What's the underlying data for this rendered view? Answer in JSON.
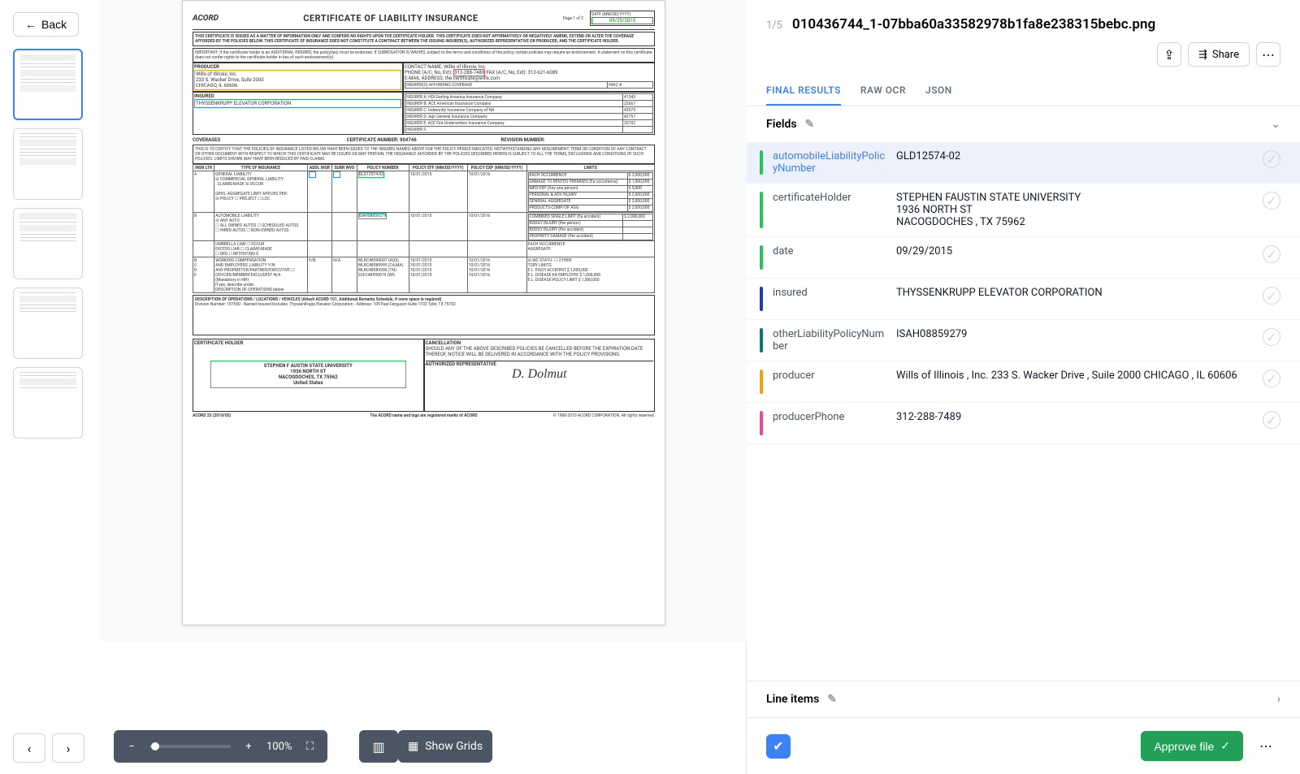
{
  "back_label": "Back",
  "page_counter": "1/5",
  "file_title": "010436744_1-07bba60a33582978b1fa8e238315bebc.png",
  "share_label": "Share",
  "tabs": {
    "final": "FINAL RESULTS",
    "raw": "RAW OCR",
    "json": "JSON"
  },
  "sections": {
    "fields": "Fields",
    "line_items": "Line items"
  },
  "zoom_label": "100%",
  "show_grids_label": "Show Grids",
  "approve_label": "Approve file",
  "colors": {
    "automobileLiabilityPolicyNumber": "#22c55e",
    "certificateHolder": "#22c55e",
    "date": "#22c55e",
    "insured": "#1e40af",
    "otherLiabilityPolicyNumber": "#0f766e",
    "producer": "#f59e0b",
    "producerPhone": "#ec4899"
  },
  "fields": [
    {
      "key": "automobileLiabilityPolicyNumber",
      "value": "GLD12574-02",
      "selected": true
    },
    {
      "key": "certificateHolder",
      "value": "STEPHEN FAUSTIN STATE UNIVERSITY\n1936 NORTH ST\nNACOGDOCHES , TX 75962"
    },
    {
      "key": "date",
      "value": "09/29/2015"
    },
    {
      "key": "insured",
      "value": "THYSSENKRUPP ELEVATOR CORPORATION"
    },
    {
      "key": "otherLiabilityPolicyNumber",
      "value": "ISAH08859279"
    },
    {
      "key": "producer",
      "value": "Wills of Illinois , Inc. 233 S. Wacker Drive , Suile 2000 CHICAGO , IL 60606"
    },
    {
      "key": "producerPhone",
      "value": "312-288-7489"
    }
  ],
  "doc": {
    "logo": "ACORD",
    "title": "CERTIFICATE OF LIABILITY INSURANCE",
    "page": "Page 1 of 2",
    "date_label": "DATE (MM/DD/YYYY)",
    "date_value": "09/29/2015",
    "disclaimer": "THIS CERTIFICATE IS ISSUED AS A MATTER OF INFORMATION ONLY AND CONFERS NO RIGHTS UPON THE CERTIFICATE HOLDER. THIS CERTIFICATE DOES NOT AFFIRMATIVELY OR NEGATIVELY AMEND, EXTEND OR ALTER THE COVERAGE AFFORDED BY THE POLICIES BELOW. THIS CERTIFICATE OF INSURANCE DOES NOT CONSTITUTE A CONTRACT BETWEEN THE ISSUING INSURER(S), AUTHORIZED REPRESENTATIVE OR PRODUCER, AND THE CERTIFICATE HOLDER.",
    "important": "IMPORTANT: If the certificate holder is an ADDITIONAL INSURED, the policy(ies) must be endorsed. If SUBROGATION IS WAIVED, subject to the terms and conditions of the policy, certain policies may require an endorsement. A statement on this certificate does not confer rights to the certificate holder in lieu of such endorsement(s).",
    "producer_label": "PRODUCER",
    "producer_lines": "Wills of Illinois, Inc.\n233 S. Wacker Drive, Suile 2000\nCHICAGO, IL 60606",
    "contact_label": "CONTACT NAME:",
    "contact_value": "Willis of Illinois, Inc.",
    "phone_label": "PHONE (A/C, No, Ext):",
    "phone_value": "312-288-7489",
    "fax_label": "FAX (A/C, No, Ext):",
    "fax_value": "312-621-6089",
    "email_label": "E-MAIL ADDRESS:",
    "email_value": "the.certificate@wills.com",
    "insurers_label": "INSURER(S) AFFORDING COVERAGE",
    "naic_label": "NAIC #",
    "insurers": [
      {
        "l": "INSURER A:",
        "n": "HDI-Gerling America Insurance Company",
        "c": "41343"
      },
      {
        "l": "INSURER B:",
        "n": "ACE American Insurance Company",
        "c": "22667"
      },
      {
        "l": "INSURER C:",
        "n": "Indemnity Insurance Company of NA",
        "c": "43575"
      },
      {
        "l": "INSURER D:",
        "n": "Agri General Insurance Company",
        "c": "42757"
      },
      {
        "l": "INSURER E:",
        "n": "ACE Fire Underwriters Insurance Company",
        "c": "20702"
      },
      {
        "l": "INSURER F:",
        "n": "",
        "c": ""
      }
    ],
    "insured_label": "INSURED",
    "insured_value": "THYSSENKRUPP ELEVATOR CORPORATION",
    "coverages": "COVERAGES",
    "cert_num_label": "CERTIFICATE NUMBER:",
    "cert_num": "954746",
    "rev_label": "REVISION NUMBER:",
    "coverage_text": "THIS IS TO CERTIFY THAT THE POLICIES OF INSURANCE LISTED BELOW HAVE BEEN ISSUED TO THE INSURED NAMED ABOVE FOR THE POLICY PERIOD INDICATED. NOTWITHSTANDING ANY REQUIREMENT, TERM OR CONDITION OF ANY CONTRACT OR OTHER DOCUMENT WITH RESPECT TO WHICH THIS CERTIFICATE MAY BE ISSUED OR MAY PERTAIN, THE INSURANCE AFFORDED BY THE POLICIES DESCRIBED HEREIN IS SUBJECT TO ALL THE TERMS, EXCLUSIONS AND CONDITIONS OF SUCH POLICIES. LIMITS SHOWN MAY HAVE BEEN REDUCED BY PAID CLAIMS.",
    "table_headers": [
      "INSR LTR",
      "TYPE OF INSURANCE",
      "ADDL INSR",
      "SUBR WVD",
      "POLICY NUMBER",
      "POLICY EFF (MM/DD/YYYY)",
      "POLICY EXP (MM/DD/YYYY)",
      "LIMITS"
    ],
    "row_a_policy": "GLD12574-02",
    "row_a_eff": "10/01/2015",
    "row_a_exp": "10/01/2016",
    "row_a_limits": [
      [
        "EACH OCCURRENCE",
        "$ 2,000,000"
      ],
      [
        "DAMAGE TO RENTED PREMISES (Ea occurrence)",
        "$ 1,000,000"
      ],
      [
        "MED EXP (Any one person)",
        "$ 5,000"
      ],
      [
        "PERSONAL & ADV INJURY",
        "$ 2,000,000"
      ],
      [
        "GENERAL AGGREGATE",
        "$ 2,000,000"
      ],
      [
        "PRODUCTS-COMP/OP AGG",
        "$ 2,000,000"
      ]
    ],
    "row_b_policy": "ISAH08859279",
    "row_b_eff": "10/01/2015",
    "row_b_exp": "10/01/2016",
    "row_b_limits": [
      [
        "COMBINED SINGLE LIMIT (Ea accident)",
        "$ 2,000,000"
      ],
      [
        "BODILY INJURY (Per person)",
        ""
      ],
      [
        "BODILY INJURY (Per accident)",
        ""
      ],
      [
        "PROPERTY DAMAGE (Per accident)",
        ""
      ]
    ],
    "cert_holder_label": "CERTIFICATE HOLDER",
    "cert_holder_value": "STEPHEN F AUSTIN STATE UNIVERSITY\n1936 NORTH ST\nNACOGDOCHES, TX 75962\nUnited States",
    "cancel_label": "CANCELLATION",
    "cancel_text": "SHOULD ANY OF THE ABOVE DESCRIBED POLICIES BE CANCELLED BEFORE THE EXPIRATION DATE THEREOF, NOTICE WILL BE DELIVERED IN ACCORDANCE WITH THE POLICY PROVISIONS.",
    "auth_label": "AUTHORIZED REPRESENTATIVE",
    "footer_left": "ACORD 25 (2010/05)",
    "footer_center": "The ACORD name and logo are registered marks of ACORD",
    "footer_right": "© 1988-2010 ACORD CORPORATION. All rights reserved.",
    "desc_ops": "DESCRIPTION OF OPERATIONS / LOCATIONS / VEHICLES (Attach ACORD 101, Additional Remarks Schedule, if more space is required)",
    "desc_text": "Division Number: 107550 - Named Insured Includes: ThyssenKrupp Elevator Corporation - Address: 109 East Ferguson Suite 1103 Tyler, TX 75702"
  }
}
